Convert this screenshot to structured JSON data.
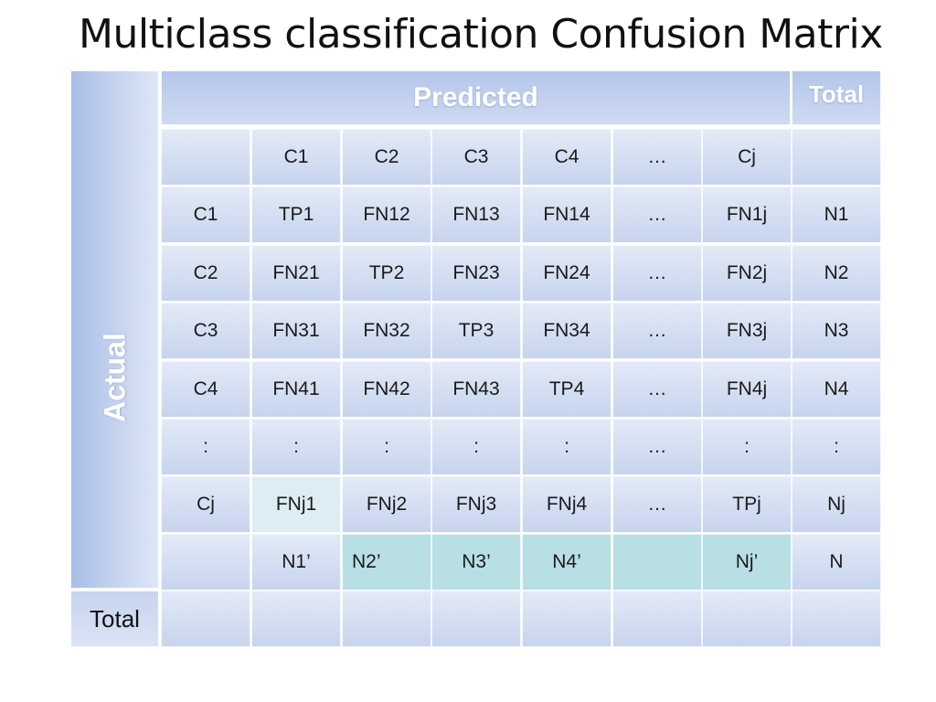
{
  "title": "Multiclass classification Confusion Matrix",
  "labels": {
    "predicted": "Predicted",
    "actual": "Actual",
    "total_header": "Total",
    "total_row": "Total"
  },
  "colors": {
    "cell_fill": "#cdd9f0",
    "header_fill": "#b3c6ea",
    "highlight_teal": "#b7dfe4",
    "highlight_pale": "#dcedf4"
  },
  "chart_data": {
    "type": "table",
    "title": "Multiclass classification Confusion Matrix",
    "column_headers": [
      "",
      "C1",
      "C2",
      "C3",
      "C4",
      "…",
      "Cj",
      ""
    ],
    "rows": [
      [
        "C1",
        "TP1",
        "FN12",
        "FN13",
        "FN14",
        "…",
        "FN1j",
        "N1"
      ],
      [
        "C2",
        "FN21",
        "TP2",
        "FN23",
        "FN24",
        "…",
        "FN2j",
        "N2"
      ],
      [
        "C3",
        "FN31",
        "FN32",
        "TP3",
        "FN34",
        "…",
        "FN3j",
        "N3"
      ],
      [
        "C4",
        "FN41",
        "FN42",
        "FN43",
        "TP4",
        "…",
        "FN4j",
        "N4"
      ],
      [
        ":",
        ":",
        ":",
        ":",
        ":",
        "…",
        ":",
        ":"
      ],
      [
        "Cj",
        "FNj1",
        "FNj2",
        "FNj3",
        "FNj4",
        "…",
        "TPj",
        "Nj"
      ],
      [
        "",
        "N1’",
        "N2’",
        "N3’",
        "N4’",
        "",
        "Nj’",
        "N"
      ],
      [
        "",
        "",
        "",
        "",
        "",
        "",
        "",
        ""
      ]
    ]
  }
}
